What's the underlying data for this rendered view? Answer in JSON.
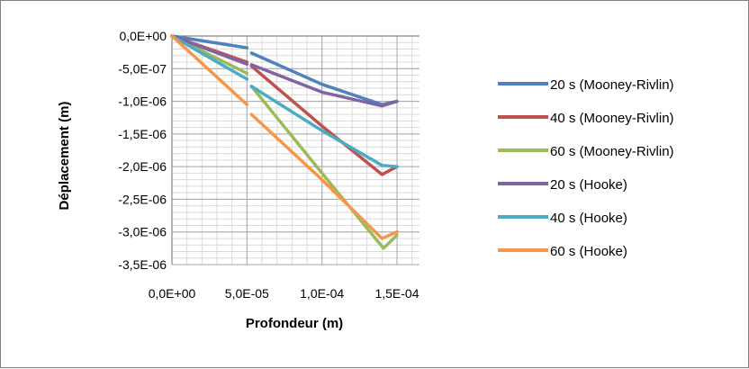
{
  "chart_data": {
    "type": "line",
    "xlabel": "Profondeur (m)",
    "ylabel": "Déplacement (m)",
    "xlim": [
      0,
      0.000165
    ],
    "ylim": [
      -3.5e-06,
      0
    ],
    "x_ticks": [
      0,
      5e-05,
      0.0001,
      0.00015
    ],
    "x_tick_labels": [
      "0,0E+00",
      "5,0E-05",
      "1,0E-04",
      "1,5E-04"
    ],
    "y_ticks": [
      0,
      -5e-07,
      -1e-06,
      -1.5e-06,
      -2e-06,
      -2.5e-06,
      -3e-06,
      -3.5e-06
    ],
    "y_tick_labels": [
      "0,0E+00",
      "-5,0E-07",
      "-1,0E-06",
      "-1,5E-06",
      "-2,0E-06",
      "-2,5E-06",
      "-3,0E-06",
      "-3,5E-06"
    ],
    "grid": true,
    "legend_position": "right",
    "series": [
      {
        "name": "20 s (Mooney-Rivlin)",
        "color": "#4F81BD",
        "segments": [
          [
            [
              0,
              0
            ],
            [
              5e-05,
              -1.8e-07
            ]
          ],
          [
            [
              5.3e-05,
              -2.6e-07
            ],
            [
              0.0001,
              -7.4e-07
            ],
            [
              0.00014,
              -1.05e-06
            ],
            [
              0.00015,
              -1e-06
            ]
          ]
        ]
      },
      {
        "name": "40 s (Mooney-Rivlin)",
        "color": "#C0504D",
        "segments": [
          [
            [
              0,
              0
            ],
            [
              5e-05,
              -4e-07
            ]
          ],
          [
            [
              5.3e-05,
              -4.6e-07
            ],
            [
              0.0001,
              -1.38e-06
            ],
            [
              0.00014,
              -2.12e-06
            ],
            [
              0.00015,
              -2e-06
            ]
          ]
        ]
      },
      {
        "name": "60 s (Mooney-Rivlin)",
        "color": "#9BBB59",
        "segments": [
          [
            [
              0,
              0
            ],
            [
              5e-05,
              -5.7e-07
            ]
          ],
          [
            [
              5.3e-05,
              -7.7e-07
            ],
            [
              0.0001,
              -2.1e-06
            ],
            [
              0.000141,
              -3.25e-06
            ],
            [
              0.00015,
              -3.05e-06
            ]
          ]
        ]
      },
      {
        "name": "20 s (Hooke)",
        "color": "#8064A2",
        "segments": [
          [
            [
              0,
              0
            ],
            [
              5e-05,
              -4.3e-07
            ]
          ],
          [
            [
              5.3e-05,
              -4.4e-07
            ],
            [
              0.0001,
              -8.6e-07
            ],
            [
              0.00014,
              -1.07e-06
            ],
            [
              0.00015,
              -1e-06
            ]
          ]
        ]
      },
      {
        "name": "40 s (Hooke)",
        "color": "#4BACC6",
        "segments": [
          [
            [
              0,
              0
            ],
            [
              5e-05,
              -6.6e-07
            ]
          ],
          [
            [
              5.3e-05,
              -7.7e-07
            ],
            [
              0.0001,
              -1.45e-06
            ],
            [
              0.00014,
              -1.98e-06
            ],
            [
              0.00015,
              -2e-06
            ]
          ]
        ]
      },
      {
        "name": "60 s (Hooke)",
        "color": "#F79646",
        "segments": [
          [
            [
              0,
              0
            ],
            [
              5e-05,
              -1.05e-06
            ]
          ],
          [
            [
              5.3e-05,
              -1.2e-06
            ],
            [
              0.0001,
              -2.2e-06
            ],
            [
              0.00014,
              -3.1e-06
            ],
            [
              0.00015,
              -3e-06
            ]
          ]
        ]
      }
    ]
  }
}
